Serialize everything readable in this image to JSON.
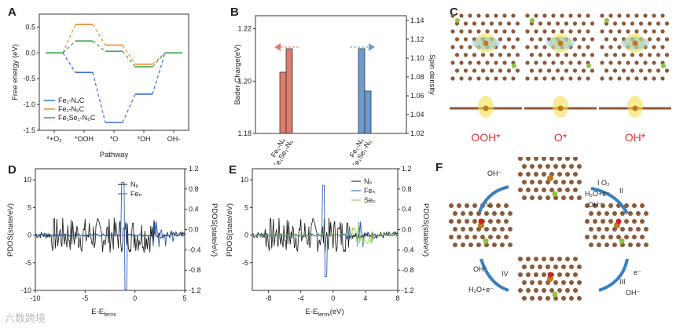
{
  "panels": {
    "A": {
      "letter": "A",
      "ylabel": "Free energy (eV)",
      "xlabel": "Pathway",
      "categories": [
        "*+O₂",
        "*OOH",
        "*O",
        "*OH",
        "OH-"
      ],
      "yticks": [
        "0.5",
        "0.0",
        "-0.5",
        "-1.0",
        "-1.5"
      ],
      "legend": [
        "Fe₁-N₄C",
        "Fe₁-N₅C",
        "Fe₁Se₁-N₅C"
      ],
      "colors": [
        "#3a6fd8",
        "#f08a2c",
        "#3fa34d"
      ]
    },
    "B": {
      "letter": "B",
      "ylabel_left": "Bader Charge(eV)",
      "ylabel_right": "Spin density",
      "yticks_left": [
        "1.22",
        "1.20",
        "1.18"
      ],
      "yticks_right": [
        "1.14",
        "1.12",
        "1.10",
        "1.08",
        "1.06",
        "1.04",
        "1.02"
      ],
      "xcats": [
        "Fe₁-N₄",
        "Fe₁Se₁-N₅",
        "Fe₁-N₄",
        "Fe₁Se₁-N₅"
      ]
    },
    "C": {
      "letter": "C",
      "labels": [
        "OOH*",
        "O*",
        "OH*"
      ]
    },
    "D": {
      "letter": "D",
      "ylabel_left": "PDOS(state/eV)",
      "ylabel_right": "PDOS(state/eV)",
      "xlabel": "E-E",
      "xlabel_sub": "fermi",
      "xticks": [
        "-10",
        "-5",
        "0",
        "5"
      ],
      "yticks_left": [
        "10",
        "5",
        "0",
        "-5",
        "-10"
      ],
      "yticks_right": [
        "1.2",
        "0.8",
        "0.4",
        "0.0",
        "-0.4",
        "-0.8",
        "-1.2"
      ],
      "legend": [
        "Nₚ",
        "Feₙ"
      ]
    },
    "E": {
      "letter": "E",
      "ylabel_left": "PDOS(state/eV)",
      "ylabel_right": "PDOS(state/eV)",
      "xlabel": "E-E",
      "xlabel_sub": "fermi",
      "xlabel_unit": "(eV)",
      "xticks": [
        "-8",
        "-4",
        "0",
        "4",
        "8"
      ],
      "yticks_left": [
        "10",
        "5",
        "0",
        "-5"
      ],
      "yticks_right": [
        "1.2",
        "0.8",
        "0.4",
        "0.0",
        "-0.4",
        "-0.8",
        "-1.2"
      ],
      "legend": [
        "Nₚ",
        "Feₙ",
        "Seₚ"
      ]
    },
    "F": {
      "letter": "F",
      "steps": [
        "I O₂",
        "H₂O+e⁻",
        "II",
        "OH⁻",
        "e⁻",
        "III",
        "OH⁻",
        "IV",
        "OH⁻",
        "H₂O+e⁻",
        "V",
        "OH⁻"
      ]
    }
  },
  "watermark": "六数跨境"
}
